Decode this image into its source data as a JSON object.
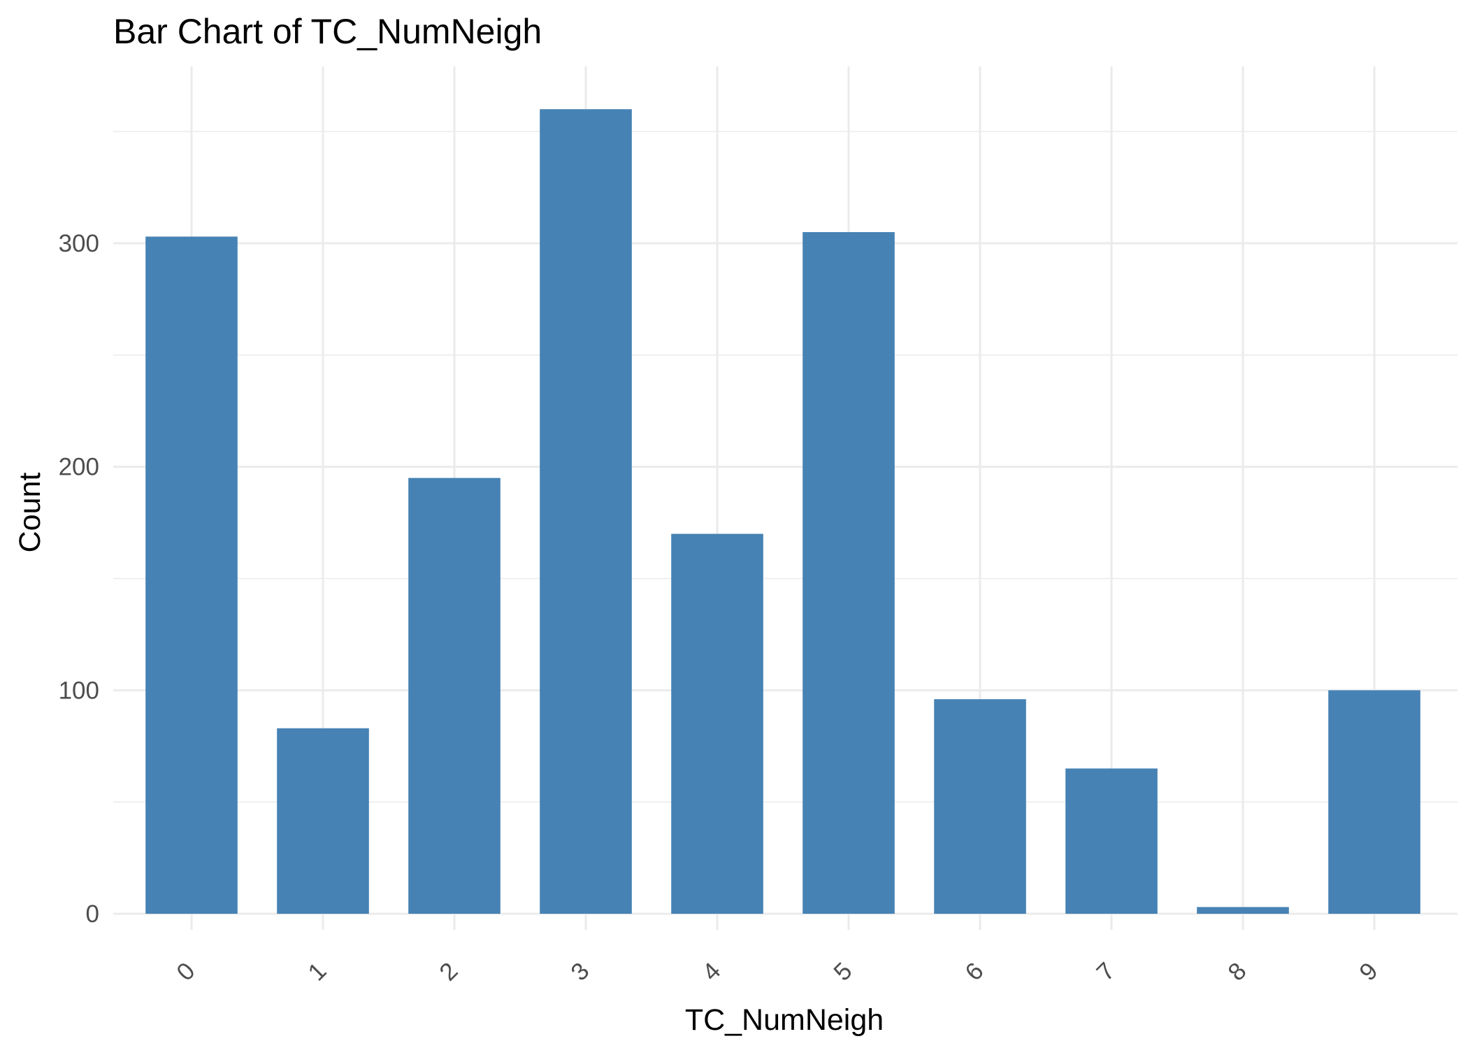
{
  "chart_data": {
    "type": "bar",
    "title": "Bar Chart of  TC_NumNeigh",
    "xlabel": "TC_NumNeigh",
    "ylabel": "Count",
    "categories": [
      "0",
      "1",
      "2",
      "3",
      "4",
      "5",
      "6",
      "7",
      "8",
      "9"
    ],
    "values": [
      303,
      83,
      195,
      360,
      170,
      305,
      96,
      65,
      3,
      100
    ],
    "ylim": [
      0,
      375
    ],
    "yticks": [
      0,
      100,
      200,
      300
    ],
    "yticks_minor": [
      50,
      150,
      250,
      350
    ],
    "x_tick_rotation": -45,
    "bar_color": "#4682b4",
    "grid": true,
    "legend": "none"
  }
}
